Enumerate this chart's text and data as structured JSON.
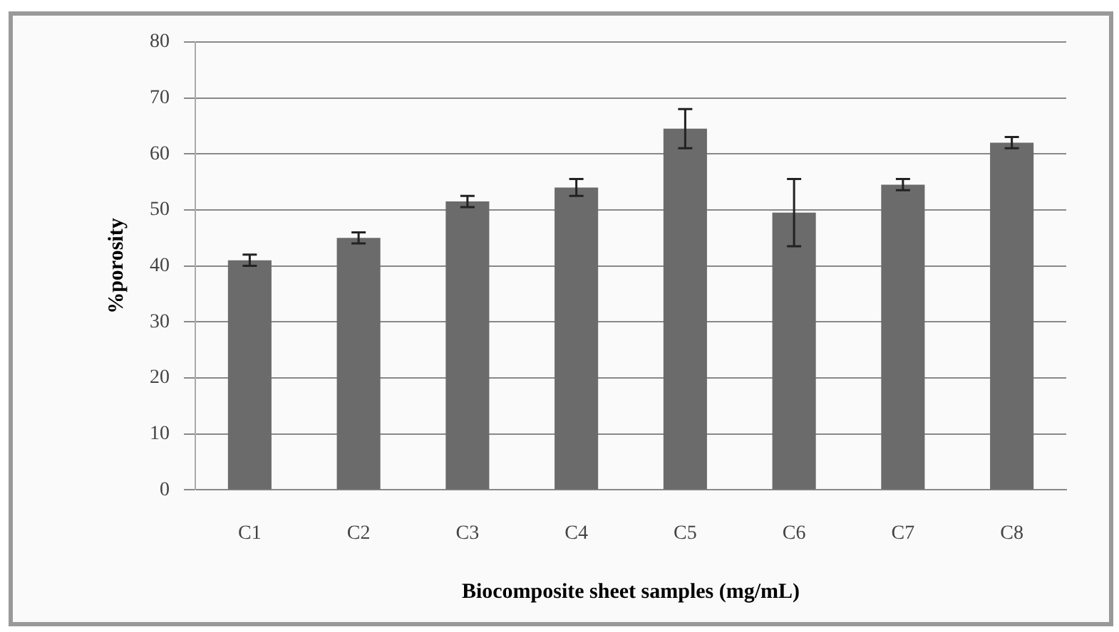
{
  "chart_data": {
    "type": "bar",
    "xlabel": "Biocomposite sheet samples (mg/mL)",
    "ylabel": "%porosity",
    "categories": [
      "C1",
      "C2",
      "C3",
      "C4",
      "C5",
      "C6",
      "C7",
      "C8"
    ],
    "values": [
      41,
      45,
      51.5,
      54,
      64.5,
      49.5,
      54.5,
      62
    ],
    "errors": [
      1,
      1,
      1,
      1.5,
      3.5,
      6,
      1,
      1
    ],
    "color": "#6b6b6b",
    "ylim": [
      0,
      80
    ],
    "yticks": [
      0,
      10,
      20,
      30,
      40,
      50,
      60,
      70,
      80
    ],
    "grid": "y",
    "legend": false
  }
}
